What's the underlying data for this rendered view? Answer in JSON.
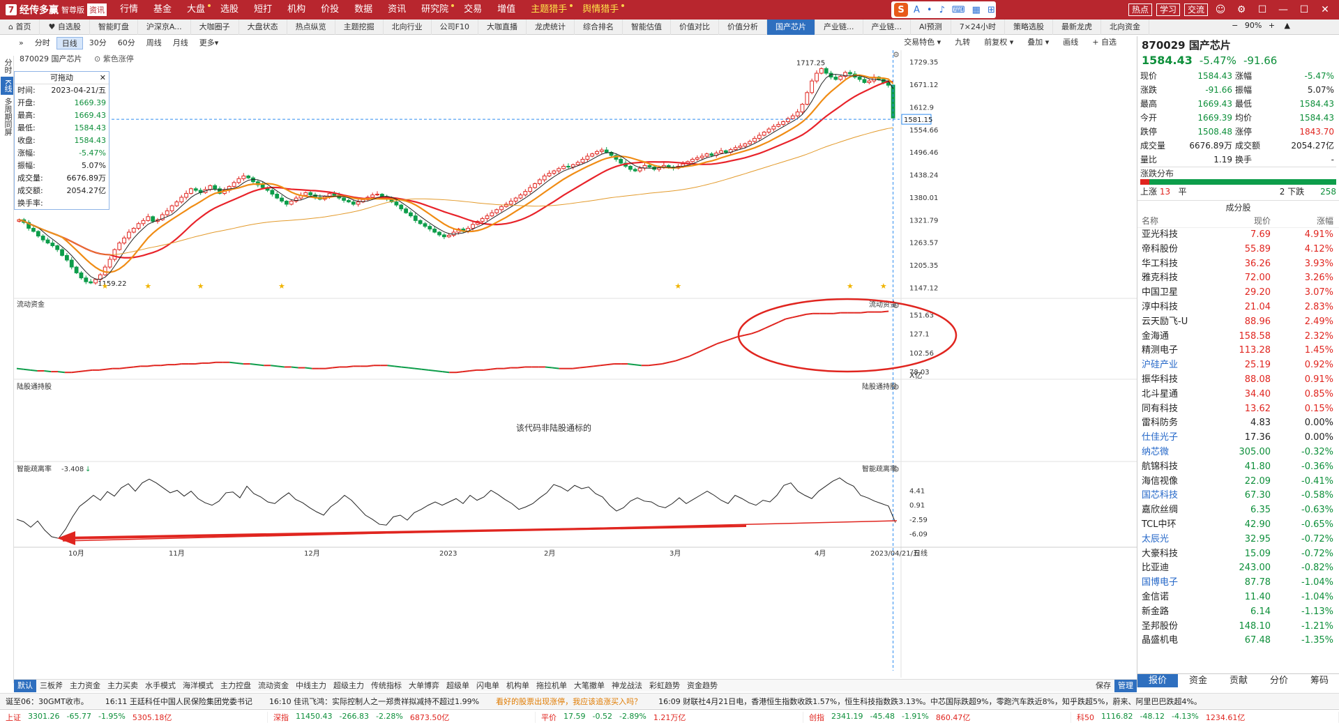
{
  "app": {
    "logo_mark": "7",
    "name": "经传多赢",
    "edition": "智尊版",
    "badge": "资讯",
    "menu": [
      "行情",
      "基金",
      "大盘",
      "选股",
      "短打",
      "机构",
      "价投",
      "数据",
      "资讯",
      "研究院",
      "交易",
      "增值"
    ],
    "menu_dots": [
      false,
      false,
      true,
      false,
      false,
      false,
      false,
      false,
      false,
      true,
      false,
      false
    ],
    "menu_highlight": [
      "主题猎手",
      "舆情猎手"
    ],
    "ime_letter": "S",
    "ime_glyphs": [
      "A",
      "•",
      "♪",
      "⌨",
      "▦",
      "⊞"
    ],
    "top_buttons": [
      "热点",
      "学习",
      "交流"
    ],
    "window_icons": [
      "☺",
      "⚙",
      "☐",
      "—",
      "☐",
      "✕"
    ]
  },
  "nav": {
    "items": [
      "首页",
      "自选股",
      "智能盯盘",
      "沪深京A...",
      "大咖圈子",
      "大盘状态",
      "热点纵览",
      "主题挖掘",
      "北向行业",
      "公司F10",
      "大咖直播",
      "龙虎统计",
      "综合排名",
      "智能估值",
      "价值对比",
      "价值分析",
      "国产芯片",
      "产业链...",
      "产业链...",
      "AI预测",
      "7×24小时",
      "策略选股",
      "最新龙虎",
      "北向资金"
    ],
    "active_index": 16,
    "zoom": "90%"
  },
  "vtabs": [
    "分时",
    "K线",
    "多周期同屏"
  ],
  "vtab_active": 1,
  "toolbar": {
    "periods": [
      "分时",
      "日线",
      "30分",
      "60分",
      "周线",
      "月线",
      "更多▾"
    ],
    "active_period": 1,
    "right": [
      "交易特色 ▾",
      "九转",
      "前复权 ▾",
      "叠加 ▾",
      "画线",
      "+ 自选"
    ]
  },
  "chart_title": {
    "code": "870029 国产芯片",
    "option": "紫色涨停"
  },
  "infobox": {
    "header": "可拖动",
    "close": "✕",
    "rows": [
      {
        "k": "时间:",
        "v": "2023-04-21/五",
        "c": ""
      },
      {
        "k": "开盘:",
        "v": "1669.39",
        "c": "green"
      },
      {
        "k": "最高:",
        "v": "1669.43",
        "c": "green"
      },
      {
        "k": "最低:",
        "v": "1584.43",
        "c": "green"
      },
      {
        "k": "收盘:",
        "v": "1584.43",
        "c": "green"
      },
      {
        "k": "涨幅:",
        "v": "-5.47%",
        "c": "green"
      },
      {
        "k": "振幅:",
        "v": "5.07%",
        "c": ""
      },
      {
        "k": "成交量:",
        "v": "6676.89万",
        "c": ""
      },
      {
        "k": "成交额:",
        "v": "2054.27亿",
        "c": ""
      },
      {
        "k": "换手率:",
        "v": "",
        "c": ""
      }
    ]
  },
  "chart_data": [
    {
      "type": "candlestick",
      "title": "870029 国产芯片",
      "y_ticks": [
        1729.35,
        1671.12,
        1612.9,
        1554.66,
        1496.46,
        1438.24,
        1380.01,
        1321.79,
        1263.57,
        1205.35,
        1147.12
      ],
      "ylim": [
        1130,
        1745
      ],
      "current_price_label": "1581.15",
      "annotations": [
        {
          "label": "1717.25"
        },
        {
          "label": "1159.22"
        }
      ],
      "x_labels": [
        "10月",
        "11月",
        "12月",
        "2023",
        "2月",
        "3月",
        "4月",
        "2023/04/21/五",
        "日线"
      ],
      "close": [
        1322,
        1315,
        1300,
        1292,
        1280,
        1270,
        1262,
        1255,
        1245,
        1230,
        1218,
        1200,
        1185,
        1172,
        1162,
        1159,
        1168,
        1180,
        1200,
        1220,
        1245,
        1262,
        1275,
        1290,
        1300,
        1312,
        1320,
        1330,
        1318,
        1322,
        1335,
        1345,
        1358,
        1368,
        1380,
        1390,
        1402,
        1398,
        1392,
        1400,
        1410,
        1402,
        1390,
        1398,
        1408,
        1418,
        1428,
        1435,
        1430,
        1420,
        1412,
        1405,
        1398,
        1388,
        1378,
        1370,
        1362,
        1370,
        1378,
        1385,
        1392,
        1386,
        1380,
        1375,
        1382,
        1390,
        1385,
        1378,
        1372,
        1368,
        1362,
        1368,
        1374,
        1380,
        1386,
        1388,
        1382,
        1376,
        1368,
        1360,
        1350,
        1340,
        1332,
        1320,
        1312,
        1305,
        1298,
        1290,
        1283,
        1278,
        1282,
        1290,
        1298,
        1292,
        1300,
        1310,
        1318,
        1325,
        1332,
        1340,
        1348,
        1356,
        1362,
        1370,
        1378,
        1386,
        1395,
        1405,
        1415,
        1425,
        1435,
        1442,
        1448,
        1454,
        1460,
        1458,
        1464,
        1470,
        1478,
        1486,
        1492,
        1498,
        1502,
        1496,
        1488,
        1478,
        1468,
        1460,
        1452,
        1448,
        1455,
        1462,
        1458,
        1452,
        1456,
        1462,
        1458,
        1455,
        1460,
        1466,
        1472,
        1478,
        1482,
        1486,
        1492,
        1488,
        1494,
        1500,
        1496,
        1503,
        1508,
        1512,
        1518,
        1524,
        1532,
        1540,
        1548,
        1556,
        1563,
        1568,
        1575,
        1583,
        1590,
        1600,
        1620,
        1650,
        1680,
        1700,
        1712,
        1700,
        1690,
        1684,
        1692,
        1702,
        1698,
        1690,
        1684,
        1676,
        1680,
        1690,
        1684,
        1676,
        1669,
        1584
      ],
      "ma_series": [
        {
          "color": "#e8232a",
          "window": 20
        },
        {
          "color": "#f08c14",
          "window": 10
        },
        {
          "color": "#222222",
          "window": 5
        },
        {
          "color": "#e39a2b",
          "window": 60
        }
      ]
    },
    {
      "type": "line",
      "title": "流动资金",
      "y_ticks": [
        151.63,
        127.1,
        102.56,
        78.03
      ],
      "unit": "X亿",
      "values": [
        82,
        81,
        80,
        79,
        79,
        78,
        78,
        77,
        77,
        78,
        79,
        80,
        80,
        81,
        82,
        82,
        83,
        84,
        85,
        85,
        86,
        86,
        87,
        87,
        88,
        88,
        88,
        89,
        89,
        90,
        90,
        90,
        89,
        88,
        88,
        87,
        86,
        86,
        85,
        84,
        84,
        83,
        83,
        82,
        82,
        82,
        83,
        84,
        84,
        85,
        85,
        85,
        86,
        86,
        86,
        85,
        84,
        83,
        82,
        81,
        80,
        79,
        78,
        77,
        77,
        78,
        79,
        80,
        80,
        81,
        82,
        82,
        83,
        83,
        84,
        84,
        84,
        84,
        83,
        82,
        82,
        82,
        83,
        84,
        85,
        86,
        87,
        88,
        88,
        88,
        87,
        86,
        86,
        87,
        88,
        90,
        92,
        95,
        98,
        102,
        106,
        110,
        114,
        117,
        120,
        123,
        125,
        127,
        130,
        134,
        138,
        142,
        146,
        148,
        150,
        152,
        153,
        153,
        153,
        153,
        154,
        154,
        154,
        154,
        155,
        155,
        155,
        156
      ]
    },
    {
      "type": "line",
      "title": "智能疏离率",
      "current_value": "-3.408",
      "y_ticks": [
        4.41,
        0.91,
        -2.59,
        -6.09
      ],
      "values": [
        -2.6,
        -3.2,
        -4.5,
        -3.0,
        -5.2,
        -6.8,
        -7.2,
        -5.0,
        -2.0,
        0.5,
        1.8,
        3.2,
        2.0,
        4.1,
        3.0,
        5.0,
        6.0,
        4.2,
        6.2,
        7.1,
        6.2,
        5.0,
        3.8,
        4.4,
        3.0,
        4.2,
        2.4,
        1.4,
        0.8,
        1.8,
        3.8,
        4.0,
        2.6,
        5.4,
        3.6,
        2.8,
        1.6,
        1.2,
        2.6,
        3.8,
        2.2,
        1.4,
        0.2,
        -0.8,
        -1.6,
        0.4,
        1.6,
        3.2,
        2.0,
        0.2,
        -1.6,
        -2.6,
        -3.8,
        -4.0,
        -2.0,
        -1.6,
        -2.8,
        -1.0,
        -0.2,
        0.8,
        1.6,
        0.8,
        1.6,
        2.4,
        1.2,
        3.2,
        2.0,
        2.8,
        4.4,
        3.4,
        2.2,
        1.2,
        -0.2,
        0.4,
        1.2,
        2.6,
        3.8,
        5.8,
        5.2,
        4.2,
        5.6,
        4.8,
        5.2,
        3.6,
        2.8,
        0.8,
        -0.6,
        0.2,
        1.8,
        2.6,
        1.8,
        1.6,
        0.6,
        0.2,
        1.2,
        2.6,
        1.2,
        2.2,
        3.2,
        4.2,
        3.2,
        2.0,
        1.2,
        3.2,
        2.4,
        1.4,
        0.8,
        2.0,
        1.6,
        3.2,
        5.6,
        6.2,
        4.2,
        3.2,
        2.4,
        4.2,
        5.4,
        6.6,
        7.4,
        6.2,
        5.4,
        3.2,
        2.6,
        1.8,
        1.2,
        0.6,
        -3.4
      ]
    }
  ],
  "panels": {
    "liudong": {
      "title": "流动资金",
      "right_title": "流动资金"
    },
    "lugu": {
      "title": "陆股通持股",
      "right_title": "陆股通持股",
      "message": "该代码非陆股通标的"
    },
    "shulilv": {
      "title": "智能疏离率",
      "right_title": "智能疏离率"
    }
  },
  "quote": {
    "code_name": "870029 国产芯片",
    "price": "1584.43",
    "change_pct": "-5.47%",
    "change": "-91.66",
    "grid": [
      [
        "现价",
        "1584.43",
        "涨幅",
        "-5.47%"
      ],
      [
        "涨跌",
        "-91.66",
        "振幅",
        "5.07%"
      ],
      [
        "最高",
        "1669.43",
        "最低",
        "1584.43"
      ],
      [
        "今开",
        "1669.39",
        "均价",
        "1584.43"
      ],
      [
        "跌停",
        "1508.48",
        "涨停",
        "1843.70"
      ],
      [
        "成交量",
        "6676.89万",
        "成交额",
        "2054.27亿"
      ],
      [
        "量比",
        "1.19",
        "换手",
        "-"
      ]
    ],
    "grid_colors": [
      [
        "",
        "green",
        "",
        "green"
      ],
      [
        "",
        "green",
        "",
        ""
      ],
      [
        "",
        "green",
        "",
        "green"
      ],
      [
        "",
        "green",
        "",
        "green"
      ],
      [
        "",
        "green",
        "",
        "red"
      ],
      [
        "",
        "",
        "",
        ""
      ],
      [
        "",
        "",
        "",
        ""
      ]
    ],
    "dist": {
      "title": "涨跌分布",
      "up_label": "上涨",
      "up": "13",
      "flat_label": "平",
      "flat": "2",
      "down_label": "下跌",
      "down": "258",
      "up_fraction": 0.048
    },
    "constituents_title": "成分股",
    "cons_headers": [
      "名称",
      "现价",
      "涨幅"
    ],
    "constituents": [
      {
        "name": "亚光科技",
        "price": "7.69",
        "pct": "4.91%",
        "c": "red",
        "n": ""
      },
      {
        "name": "帝科股份",
        "price": "55.89",
        "pct": "4.12%",
        "c": "red",
        "n": ""
      },
      {
        "name": "华工科技",
        "price": "36.26",
        "pct": "3.93%",
        "c": "red",
        "n": ""
      },
      {
        "name": "雅克科技",
        "price": "72.00",
        "pct": "3.26%",
        "c": "red",
        "n": ""
      },
      {
        "name": "中国卫星",
        "price": "29.20",
        "pct": "3.07%",
        "c": "red",
        "n": ""
      },
      {
        "name": "淳中科技",
        "price": "21.04",
        "pct": "2.83%",
        "c": "red",
        "n": ""
      },
      {
        "name": "云天励飞-U",
        "price": "88.96",
        "pct": "2.49%",
        "c": "red",
        "n": ""
      },
      {
        "name": "金海通",
        "price": "158.58",
        "pct": "2.32%",
        "c": "red",
        "n": ""
      },
      {
        "name": "精测电子",
        "price": "113.28",
        "pct": "1.45%",
        "c": "red",
        "n": ""
      },
      {
        "name": "沪硅产业",
        "price": "25.19",
        "pct": "0.92%",
        "c": "red",
        "n": "blue"
      },
      {
        "name": "振华科技",
        "price": "88.08",
        "pct": "0.91%",
        "c": "red",
        "n": ""
      },
      {
        "name": "北斗星通",
        "price": "34.40",
        "pct": "0.85%",
        "c": "red",
        "n": ""
      },
      {
        "name": "同有科技",
        "price": "13.62",
        "pct": "0.15%",
        "c": "red",
        "n": ""
      },
      {
        "name": "雷科防务",
        "price": "4.83",
        "pct": "0.00%",
        "c": "",
        "n": ""
      },
      {
        "name": "仕佳光子",
        "price": "17.36",
        "pct": "0.00%",
        "c": "",
        "n": "blue"
      },
      {
        "name": "纳芯微",
        "price": "305.00",
        "pct": "-0.32%",
        "c": "green",
        "n": "blue"
      },
      {
        "name": "航锦科技",
        "price": "41.80",
        "pct": "-0.36%",
        "c": "green",
        "n": ""
      },
      {
        "name": "海信视像",
        "price": "22.09",
        "pct": "-0.41%",
        "c": "green",
        "n": ""
      },
      {
        "name": "国芯科技",
        "price": "67.30",
        "pct": "-0.58%",
        "c": "green",
        "n": "blue"
      },
      {
        "name": "嘉欣丝绸",
        "price": "6.35",
        "pct": "-0.63%",
        "c": "green",
        "n": ""
      },
      {
        "name": "TCL中环",
        "price": "42.90",
        "pct": "-0.65%",
        "c": "green",
        "n": ""
      },
      {
        "name": "太辰光",
        "price": "32.95",
        "pct": "-0.72%",
        "c": "green",
        "n": "blue"
      },
      {
        "name": "大豪科技",
        "price": "15.09",
        "pct": "-0.72%",
        "c": "green",
        "n": ""
      },
      {
        "name": "比亚迪",
        "price": "243.00",
        "pct": "-0.82%",
        "c": "green",
        "n": ""
      },
      {
        "name": "国博电子",
        "price": "87.78",
        "pct": "-1.04%",
        "c": "green",
        "n": "blue"
      },
      {
        "name": "金信诺",
        "price": "11.40",
        "pct": "-1.04%",
        "c": "green",
        "n": ""
      },
      {
        "name": "新金路",
        "price": "6.14",
        "pct": "-1.13%",
        "c": "green",
        "n": ""
      },
      {
        "name": "圣邦股份",
        "price": "148.10",
        "pct": "-1.21%",
        "c": "green",
        "n": ""
      },
      {
        "name": "晶盛机电",
        "price": "67.48",
        "pct": "-1.35%",
        "c": "green",
        "n": ""
      }
    ],
    "tabs": [
      "报价",
      "资金",
      "贡献",
      "分价",
      "筹码"
    ],
    "tab_active": 0
  },
  "indicator_tabs": [
    "默认",
    "三板斧",
    "主力资金",
    "主力买卖",
    "水手模式",
    "海洋模式",
    "主力控盘",
    "流动资金",
    "中线主力",
    "超级主力",
    "传统指标",
    "大单博弈",
    "超级单",
    "闪电单",
    "机构单",
    "拖拉机单",
    "大笔撤单",
    "神龙战法",
    "彩虹趋势",
    "资金趋势"
  ],
  "indicator_active": 0,
  "indicator_right": [
    "保存",
    "管理"
  ],
  "ticker": [
    {
      "t": "诞至06：30GMT收市。",
      "c": ""
    },
    {
      "t": "16:11 王廷科任中国人民保险集团党委书记",
      "c": ""
    },
    {
      "t": "16:10 佳讯飞鸿：实际控制人之一郑贵祥拟减持不超过1.99%",
      "c": ""
    },
    {
      "t": "看好的股票出现涨停，我应该追涨买入吗？",
      "c": "orange"
    },
    {
      "t": "16:09 财联社4月21日电，香港恒生指数收跌1.57%，恒生科技指数跌3.13%。中芯国际跌超9%，零跑汽车跌近8%，知乎跌超5%，蔚来、阿里巴巴跌超4%。",
      "c": ""
    }
  ],
  "indices": [
    {
      "name": "上证",
      "price": "3301.26",
      "chg": "-65.77",
      "pct": "-1.95%",
      "amt": "5305.18亿"
    },
    {
      "name": "深指",
      "price": "11450.43",
      "chg": "-266.83",
      "pct": "-2.28%",
      "amt": "6873.50亿"
    },
    {
      "name": "平价",
      "price": "17.59",
      "chg": "-0.52",
      "pct": "-2.89%",
      "amt": "1.21万亿"
    },
    {
      "name": "创指",
      "price": "2341.19",
      "chg": "-45.48",
      "pct": "-1.91%",
      "amt": "860.47亿"
    },
    {
      "name": "科50",
      "price": "1116.82",
      "chg": "-48.12",
      "pct": "-4.13%",
      "amt": "1234.61亿"
    }
  ]
}
